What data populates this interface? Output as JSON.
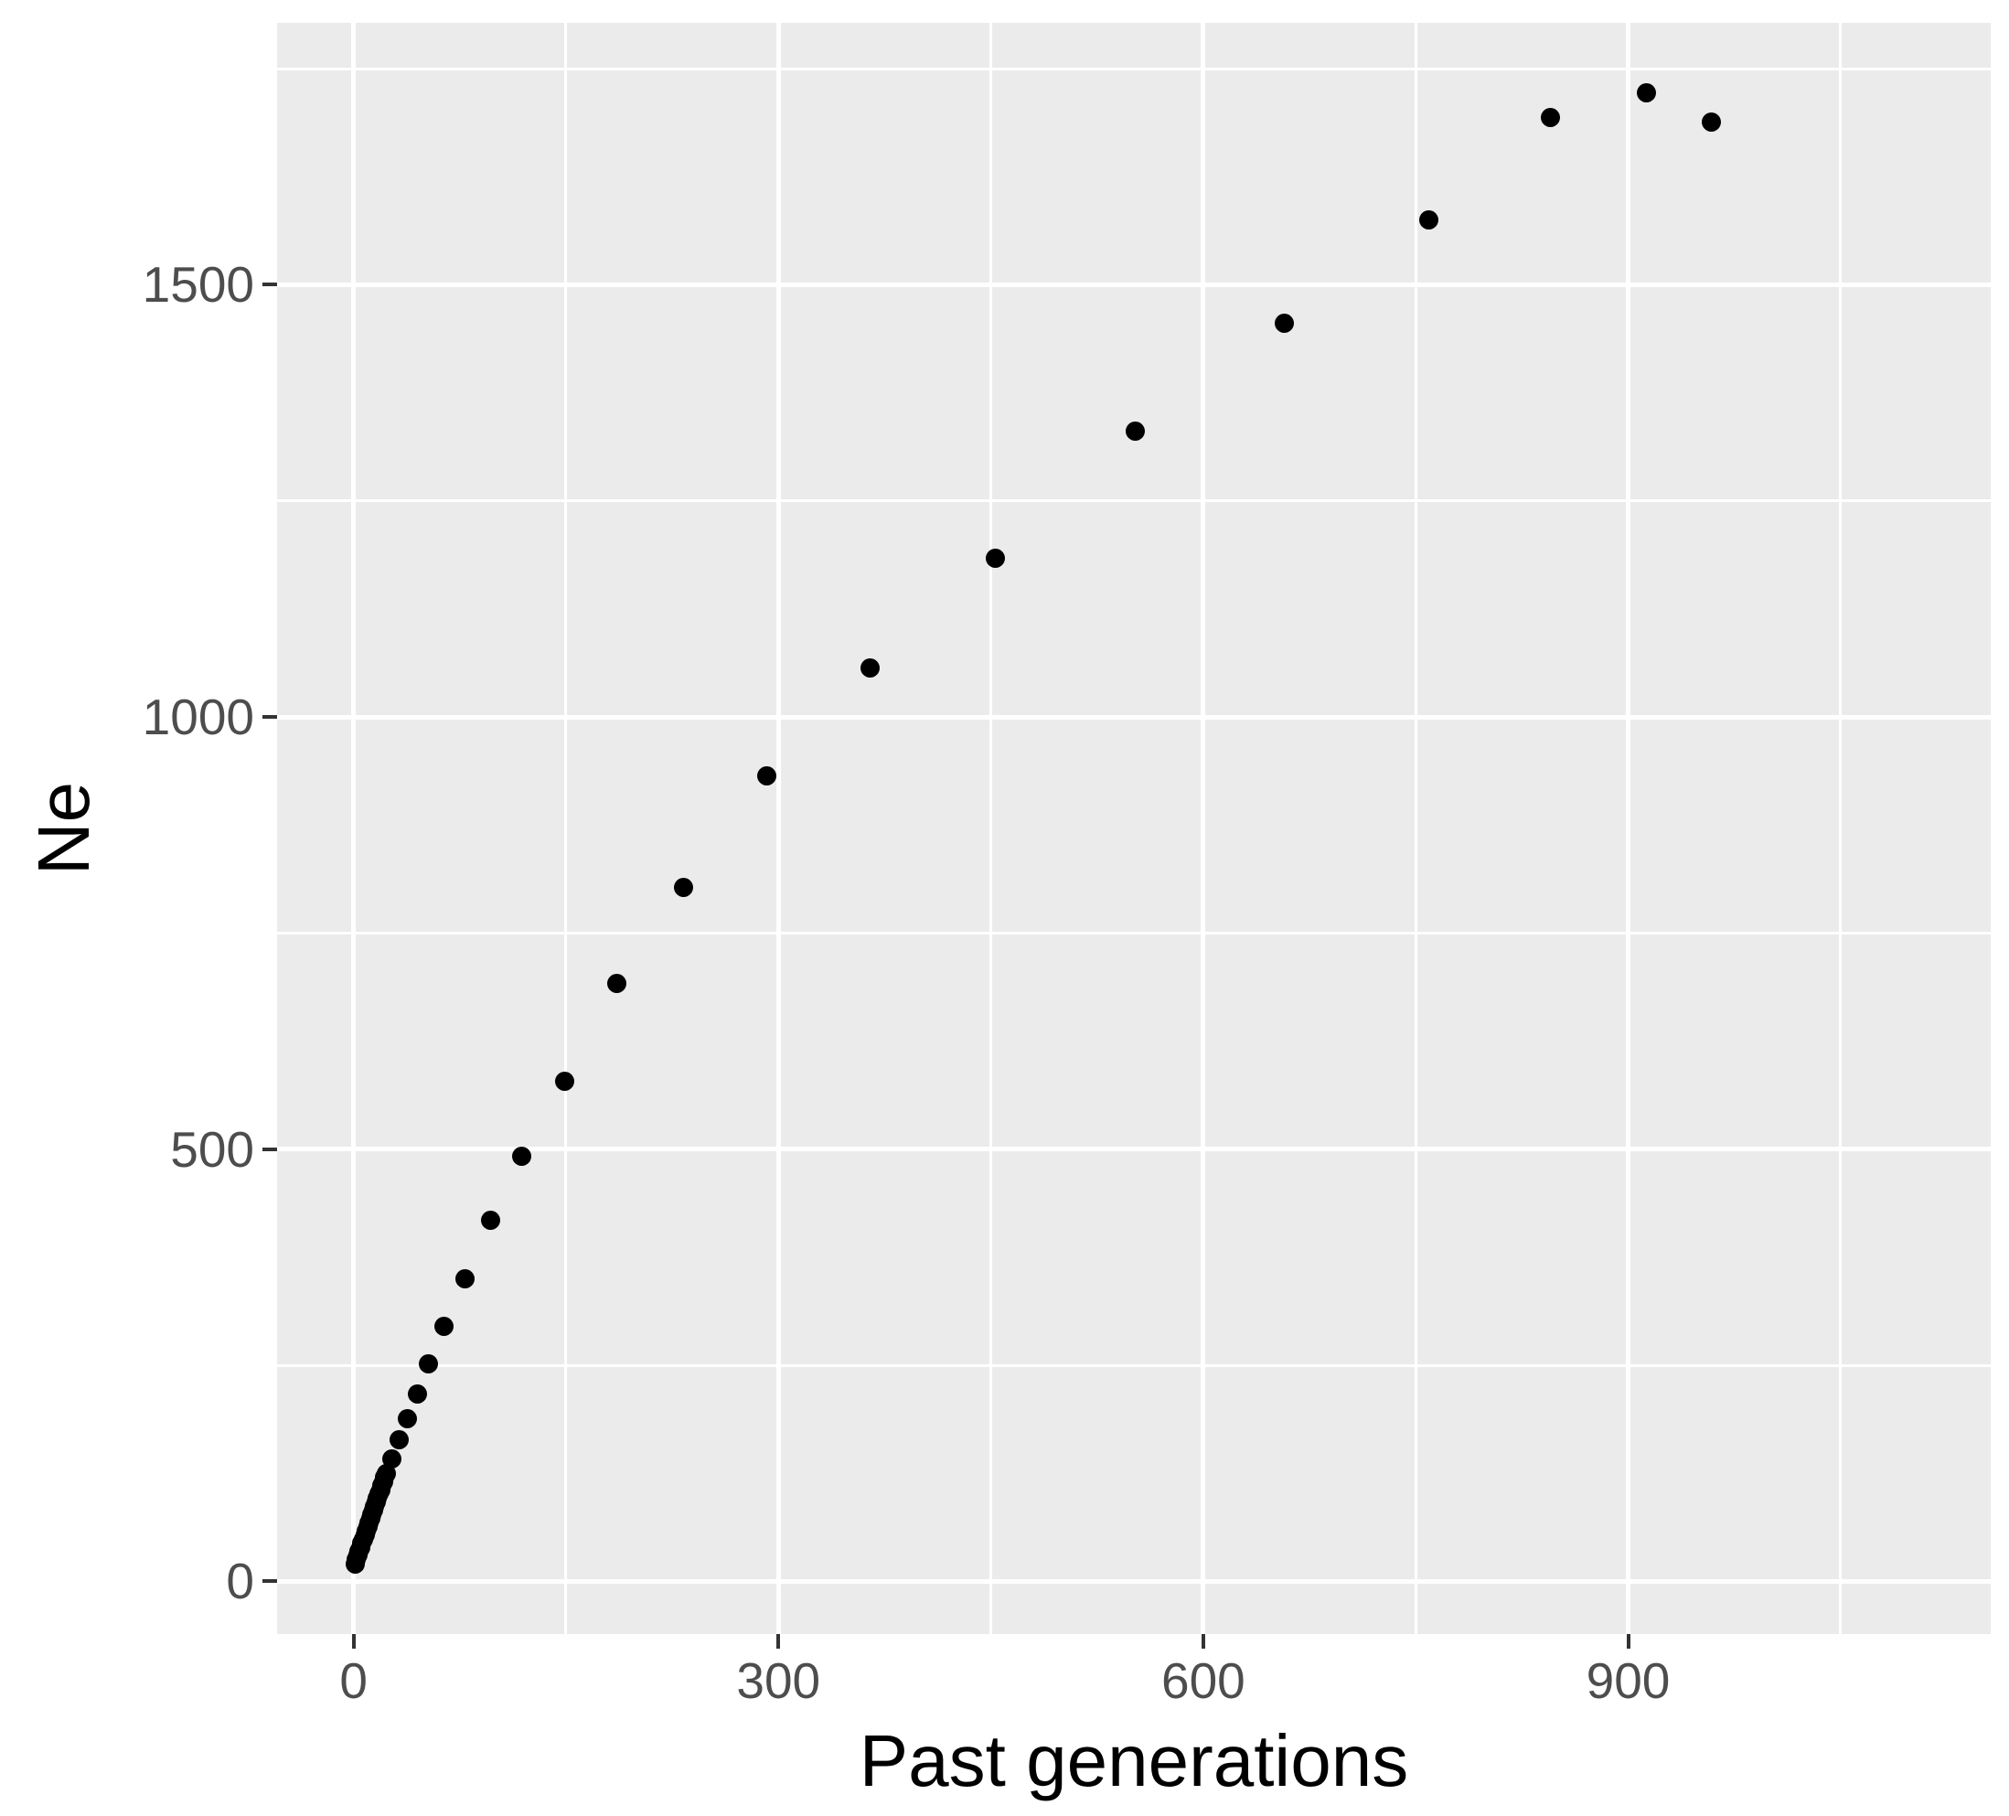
{
  "figure": {
    "x_axis_title": "Past generations",
    "y_axis_title": "Ne"
  },
  "chart_data": {
    "type": "scatter",
    "title": "",
    "xlabel": "Past generations",
    "ylabel": "Ne",
    "x_ticks": [
      0,
      300,
      600,
      900
    ],
    "x_tick_labels": [
      "0",
      "300",
      "600",
      "900"
    ],
    "y_ticks": [
      0,
      500,
      1000,
      1500
    ],
    "y_tick_labels": [
      "0",
      "500",
      "1000",
      "1500"
    ],
    "x_minor_ticks": [
      150,
      450,
      750,
      1050
    ],
    "y_minor_ticks": [
      250,
      750,
      1250,
      1750
    ],
    "xlim": [
      -54,
      1156
    ],
    "ylim": [
      -61,
      1803
    ],
    "grid": "major and minor white gridlines on grey panel",
    "legend_position": "none",
    "marker": "filled black circle",
    "points": [
      [
        1,
        20
      ],
      [
        2,
        25
      ],
      [
        3,
        30
      ],
      [
        4,
        35
      ],
      [
        5,
        39
      ],
      [
        6,
        44
      ],
      [
        7,
        49
      ],
      [
        8,
        54
      ],
      [
        9,
        58
      ],
      [
        10,
        63
      ],
      [
        11,
        68
      ],
      [
        12,
        73
      ],
      [
        13,
        77
      ],
      [
        14,
        82
      ],
      [
        15,
        87
      ],
      [
        16,
        92
      ],
      [
        17,
        96
      ],
      [
        18,
        101
      ],
      [
        19,
        106
      ],
      [
        20,
        111
      ],
      [
        21,
        115
      ],
      [
        22,
        120
      ],
      [
        23,
        125
      ],
      [
        27,
        142
      ],
      [
        32,
        164
      ],
      [
        38,
        188
      ],
      [
        45,
        217
      ],
      [
        53,
        252
      ],
      [
        64,
        295
      ],
      [
        79,
        350
      ],
      [
        97,
        418
      ],
      [
        119,
        492
      ],
      [
        149,
        579
      ],
      [
        186,
        692
      ],
      [
        233,
        803
      ],
      [
        292,
        932
      ],
      [
        365,
        1057
      ],
      [
        453,
        1184
      ],
      [
        552,
        1331
      ],
      [
        657,
        1456
      ],
      [
        759,
        1575
      ],
      [
        845,
        1694
      ],
      [
        913,
        1722
      ],
      [
        959,
        1688
      ]
    ]
  },
  "colors": {
    "panel_background": "#ebebeb",
    "gridline": "#ffffff",
    "point": "#000000",
    "tick_mark": "#333333",
    "tick_label": "#4d4d4d",
    "axis_title": "#000000",
    "figure_background": "#ffffff"
  }
}
